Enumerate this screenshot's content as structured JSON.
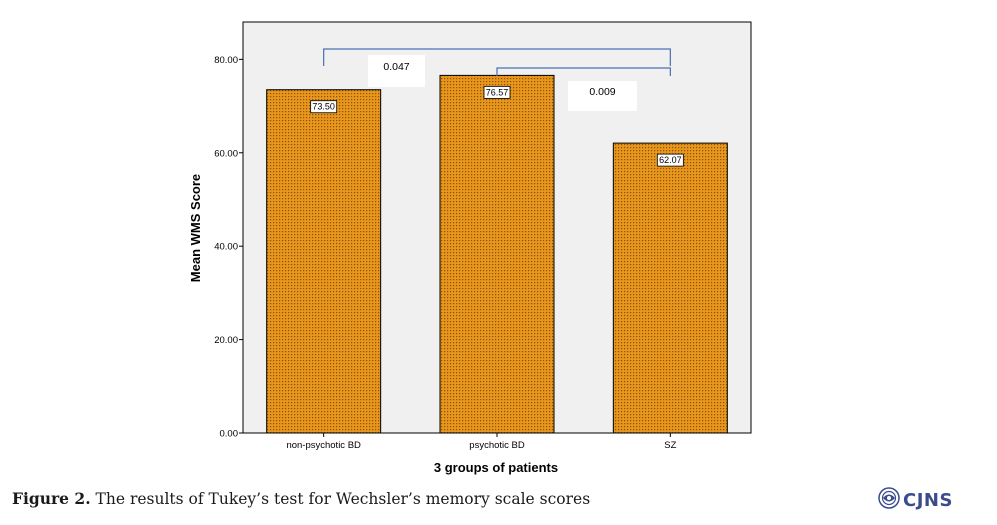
{
  "chart_data": {
    "type": "bar",
    "categories": [
      "non-psychotic BD",
      "psychotic BD",
      "SZ"
    ],
    "values": [
      73.5,
      76.57,
      62.07
    ],
    "value_labels": [
      "73.50",
      "76.57",
      "62.07"
    ],
    "xlabel": "3 groups of patients",
    "ylabel": "Mean WMS Score",
    "ylim": [
      0,
      88
    ],
    "yticks": [
      0,
      20,
      40,
      60,
      80
    ],
    "ytick_labels": [
      "0.00",
      "20.00",
      "40.00",
      "60.00",
      "80.00"
    ],
    "grid": false,
    "comparisons": [
      {
        "from": "non-psychotic BD",
        "to": "SZ",
        "p_value": "0.047"
      },
      {
        "from": "psychotic BD",
        "to": "SZ",
        "p_value": "0.009"
      }
    ],
    "colors": {
      "bar_fill": "#e8961e",
      "bar_dots": "#8a5200",
      "plot_bg": "#f0f0f0",
      "bracket": "#4a6fb5"
    }
  },
  "caption": {
    "label": "Figure 2.",
    "text": " The results of Tukey’s test for Wechsler’s memory scale scores"
  },
  "logo": {
    "text": "CJNS",
    "icon": "cjns-emblem-icon"
  }
}
